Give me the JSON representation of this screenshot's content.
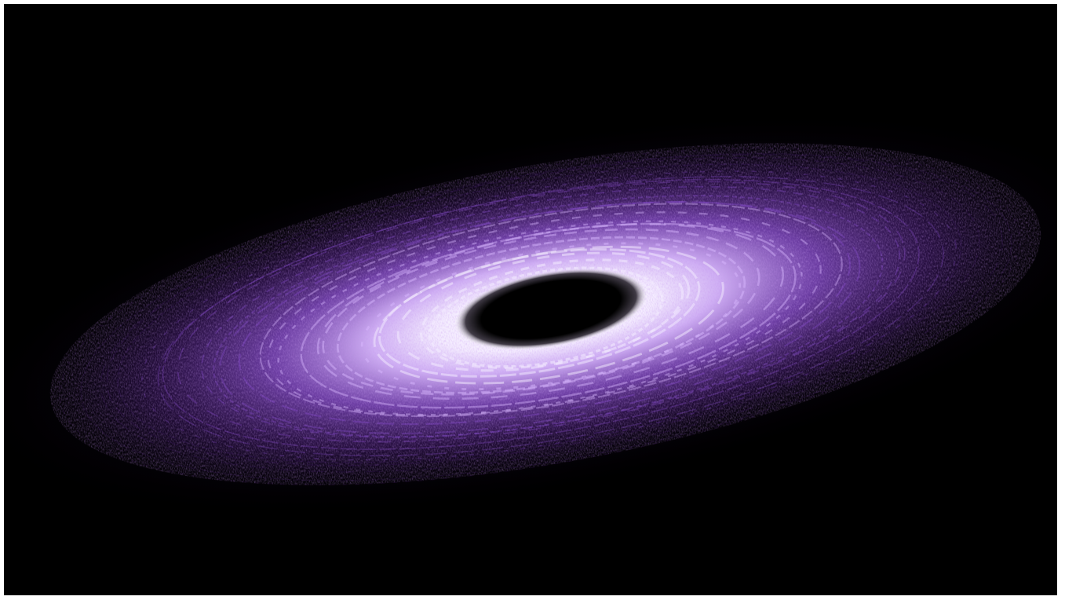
{
  "image": {
    "subject": "black-hole-accretion-disk",
    "colors": {
      "background": "#000000",
      "outer_disk": "#3a1660",
      "mid_disk": "#8a4fd0",
      "inner_glow": "#d9b8ff",
      "hot_ring": "#f4ecff",
      "event_horizon": "#000000",
      "page_border": "#ffffff"
    }
  }
}
